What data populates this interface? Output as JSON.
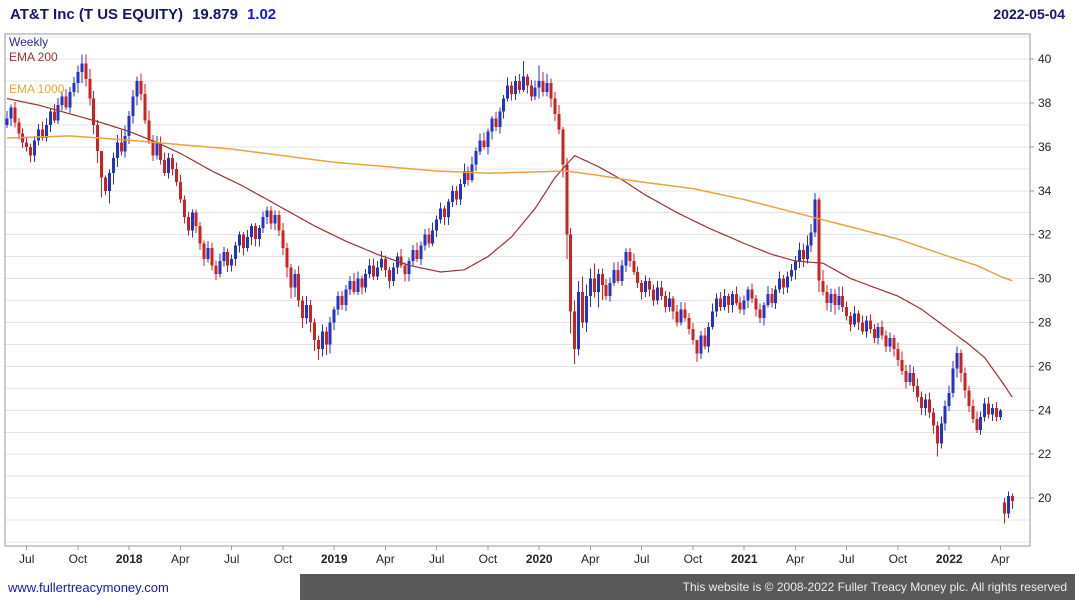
{
  "header": {
    "title": "AT&T Inc (T US EQUITY)",
    "price": "19.879",
    "change": "1.02",
    "date": "2022-05-04"
  },
  "legend": {
    "timeframe": "Weekly",
    "ema200": "EMA 200",
    "ema1000": "EMA 1000"
  },
  "footer": {
    "link": "www.fullertreacymoney.com",
    "copyright": "This website is © 2008-2022 Fuller Treacy Money plc. All rights reserved"
  },
  "colors": {
    "up": "#2233c8",
    "down": "#cc2222",
    "ema200": "#993333",
    "ema1000": "#e8a43d",
    "grid": "#e4e4e4",
    "border": "#9a9a9a",
    "axis_text": "#222222",
    "title": "#14146e",
    "change": "#1515e6",
    "weekly": "#2b2b8f",
    "link": "#1414cc",
    "footer_bg": "#595959",
    "footer_text": "#ededed"
  },
  "chart_data": {
    "type": "candlestick",
    "timeframe": "weekly",
    "title": "AT&T Inc (T US EQUITY)",
    "last_price": 19.879,
    "change": 1.02,
    "date": "2022-05-04",
    "legend_entries": [
      "Weekly",
      "EMA 200",
      "EMA 1000"
    ],
    "y_ticks": [
      20,
      22,
      24,
      26,
      28,
      30,
      32,
      34,
      36,
      38,
      40
    ],
    "y_range": [
      17.82,
      41.14
    ],
    "grid_step": 1,
    "slots": 260,
    "first_open": 37.0,
    "x_ticks": [
      {
        "week": 5,
        "label": "Jul",
        "bold": false
      },
      {
        "week": 18,
        "label": "Oct",
        "bold": false
      },
      {
        "week": 31,
        "label": "2018",
        "bold": true
      },
      {
        "week": 44,
        "label": "Apr",
        "bold": false
      },
      {
        "week": 57,
        "label": "Jul",
        "bold": false
      },
      {
        "week": 70,
        "label": "Oct",
        "bold": false
      },
      {
        "week": 83,
        "label": "2019",
        "bold": true
      },
      {
        "week": 96,
        "label": "Apr",
        "bold": false
      },
      {
        "week": 109,
        "label": "Jul",
        "bold": false
      },
      {
        "week": 122,
        "label": "Oct",
        "bold": false
      },
      {
        "week": 135,
        "label": "2020",
        "bold": true
      },
      {
        "week": 148,
        "label": "Apr",
        "bold": false
      },
      {
        "week": 161,
        "label": "Jul",
        "bold": false
      },
      {
        "week": 174,
        "label": "Oct",
        "bold": false
      },
      {
        "week": 187,
        "label": "2021",
        "bold": true
      },
      {
        "week": 200,
        "label": "Apr",
        "bold": false
      },
      {
        "week": 213,
        "label": "Jul",
        "bold": false
      },
      {
        "week": 226,
        "label": "Oct",
        "bold": false
      },
      {
        "week": 239,
        "label": "2022",
        "bold": true
      },
      {
        "week": 252,
        "label": "Apr",
        "bold": false
      }
    ],
    "closes": [
      37.3,
      37.8,
      37.1,
      36.6,
      36.2,
      36.0,
      35.6,
      36.3,
      36.8,
      36.4,
      37.0,
      37.6,
      37.2,
      37.9,
      38.3,
      37.8,
      38.5,
      38.9,
      39.4,
      39.8,
      39.1,
      38.2,
      37.0,
      35.8,
      34.6,
      34.0,
      34.8,
      35.5,
      36.2,
      35.8,
      36.5,
      37.4,
      38.3,
      39.0,
      38.4,
      37.2,
      36.3,
      35.6,
      36.2,
      35.4,
      34.8,
      35.5,
      35.0,
      34.4,
      33.6,
      32.8,
      32.2,
      33.0,
      32.4,
      31.6,
      30.9,
      31.4,
      30.6,
      30.2,
      30.8,
      31.2,
      30.6,
      30.9,
      31.5,
      32.0,
      31.4,
      31.9,
      32.4,
      31.8,
      32.3,
      32.8,
      33.1,
      32.5,
      32.9,
      32.2,
      31.4,
      30.5,
      29.6,
      30.2,
      29.0,
      28.2,
      28.8,
      28.0,
      27.2,
      26.8,
      27.6,
      27.0,
      28.0,
      28.6,
      29.2,
      28.8,
      29.5,
      29.9,
      29.4,
      30.0,
      29.6,
      30.2,
      30.6,
      30.1,
      30.5,
      30.9,
      30.4,
      29.9,
      30.5,
      31.0,
      30.6,
      30.2,
      30.8,
      31.3,
      30.9,
      31.5,
      32.0,
      31.6,
      32.2,
      32.7,
      33.2,
      32.8,
      33.5,
      34.0,
      33.6,
      34.3,
      34.9,
      34.5,
      35.2,
      35.8,
      36.3,
      36.0,
      36.7,
      37.3,
      36.9,
      37.6,
      38.2,
      38.8,
      38.4,
      39.0,
      38.6,
      39.2,
      38.8,
      38.3,
      38.7,
      39.0,
      38.5,
      38.9,
      38.2,
      37.5,
      36.8,
      35.2,
      32.0,
      28.5,
      26.8,
      29.4,
      28.0,
      29.2,
      30.0,
      29.4,
      30.2,
      29.7,
      29.2,
      29.8,
      30.4,
      29.9,
      30.6,
      31.2,
      30.8,
      30.3,
      29.8,
      29.4,
      29.9,
      29.5,
      29.0,
      29.6,
      29.2,
      28.7,
      29.1,
      28.5,
      28.0,
      28.6,
      28.2,
      27.7,
      27.2,
      26.6,
      27.4,
      26.9,
      27.8,
      28.5,
      29.1,
      28.7,
      29.2,
      28.8,
      29.3,
      28.9,
      28.6,
      29.0,
      29.5,
      29.1,
      28.6,
      28.2,
      28.8,
      29.3,
      28.9,
      29.5,
      30.0,
      29.6,
      30.1,
      30.4,
      30.8,
      31.3,
      30.9,
      31.5,
      32.1,
      33.6,
      29.9,
      29.4,
      28.9,
      29.3,
      28.8,
      29.2,
      28.7,
      28.3,
      27.9,
      28.4,
      28.0,
      27.6,
      28.1,
      27.7,
      27.3,
      27.8,
      27.4,
      26.9,
      27.3,
      26.8,
      26.3,
      25.8,
      25.3,
      25.7,
      25.1,
      24.6,
      24.1,
      24.5,
      23.9,
      23.3,
      22.5,
      23.4,
      24.2,
      24.8,
      25.9,
      26.6,
      25.7,
      24.9,
      24.2,
      23.6,
      23.1,
      23.7,
      24.3,
      23.8,
      24.1,
      23.7,
      24.0,
      19.3,
      20.1,
      19.879
    ],
    "open_overrides": {
      "253": 19.8
    },
    "wick_overrides": {
      "19": [
        40.2,
        38.9
      ],
      "24": [
        35.0,
        33.7
      ],
      "25": [
        34.7,
        33.8
      ],
      "79": [
        27.4,
        26.3
      ],
      "131": [
        39.9,
        38.5
      ],
      "135": [
        39.7,
        38.2
      ],
      "141": [
        36.9,
        34.6
      ],
      "142": [
        35.5,
        30.9
      ],
      "143": [
        32.3,
        27.5
      ],
      "144": [
        29.0,
        26.1
      ],
      "145": [
        29.9,
        26.5
      ],
      "175": [
        27.2,
        26.2
      ],
      "205": [
        33.9,
        31.9
      ],
      "206": [
        33.7,
        29.4
      ],
      "236": [
        23.5,
        21.9
      ],
      "241": [
        26.9,
        25.5
      ],
      "253": [
        20.0,
        18.85
      ],
      "254": [
        20.3,
        19.1
      ],
      "255": [
        20.2,
        19.5
      ]
    },
    "wick_base": 0.28,
    "vol_zones": [
      [
        18,
        30,
        1.6
      ],
      [
        31,
        36,
        1.3
      ],
      [
        70,
        82,
        1.4
      ],
      [
        135,
        140,
        1.3
      ],
      [
        141,
        151,
        2.0
      ],
      [
        200,
        212,
        1.4
      ],
      [
        226,
        243,
        1.2
      ],
      [
        252,
        255,
        0.4
      ]
    ],
    "series": [
      {
        "name": "EMA 200",
        "type": "line",
        "anchors": [
          [
            0,
            38.2
          ],
          [
            8,
            37.9
          ],
          [
            16,
            37.5
          ],
          [
            24,
            37.1
          ],
          [
            31,
            36.7
          ],
          [
            38,
            36.2
          ],
          [
            44,
            35.7
          ],
          [
            52,
            34.9
          ],
          [
            60,
            34.2
          ],
          [
            70,
            33.2
          ],
          [
            78,
            32.4
          ],
          [
            86,
            31.7
          ],
          [
            94,
            31.1
          ],
          [
            102,
            30.6
          ],
          [
            110,
            30.3
          ],
          [
            116,
            30.4
          ],
          [
            122,
            31.0
          ],
          [
            128,
            31.9
          ],
          [
            134,
            33.2
          ],
          [
            139,
            34.6
          ],
          [
            144,
            35.6
          ],
          [
            150,
            35.1
          ],
          [
            156,
            34.5
          ],
          [
            162,
            33.8
          ],
          [
            170,
            33.0
          ],
          [
            178,
            32.3
          ],
          [
            187,
            31.6
          ],
          [
            194,
            31.1
          ],
          [
            200,
            30.8
          ],
          [
            207,
            30.7
          ],
          [
            214,
            30.0
          ],
          [
            220,
            29.6
          ],
          [
            226,
            29.2
          ],
          [
            232,
            28.6
          ],
          [
            238,
            27.8
          ],
          [
            244,
            27.0
          ],
          [
            248,
            26.4
          ],
          [
            252,
            25.4
          ],
          [
            255,
            24.6
          ]
        ],
        "color_key": "ema200",
        "width": 1.2
      },
      {
        "name": "EMA 1000",
        "type": "line",
        "anchors": [
          [
            0,
            36.4
          ],
          [
            16,
            36.5
          ],
          [
            31,
            36.3
          ],
          [
            44,
            36.1
          ],
          [
            57,
            35.9
          ],
          [
            70,
            35.6
          ],
          [
            83,
            35.3
          ],
          [
            96,
            35.1
          ],
          [
            109,
            34.9
          ],
          [
            122,
            34.8
          ],
          [
            132,
            34.85
          ],
          [
            142,
            34.9
          ],
          [
            150,
            34.7
          ],
          [
            161,
            34.4
          ],
          [
            174,
            34.1
          ],
          [
            187,
            33.6
          ],
          [
            200,
            33.0
          ],
          [
            213,
            32.4
          ],
          [
            226,
            31.8
          ],
          [
            239,
            31.0
          ],
          [
            246,
            30.6
          ],
          [
            252,
            30.1
          ],
          [
            255,
            29.9
          ]
        ],
        "color_key": "ema1000",
        "width": 1.5
      }
    ]
  }
}
